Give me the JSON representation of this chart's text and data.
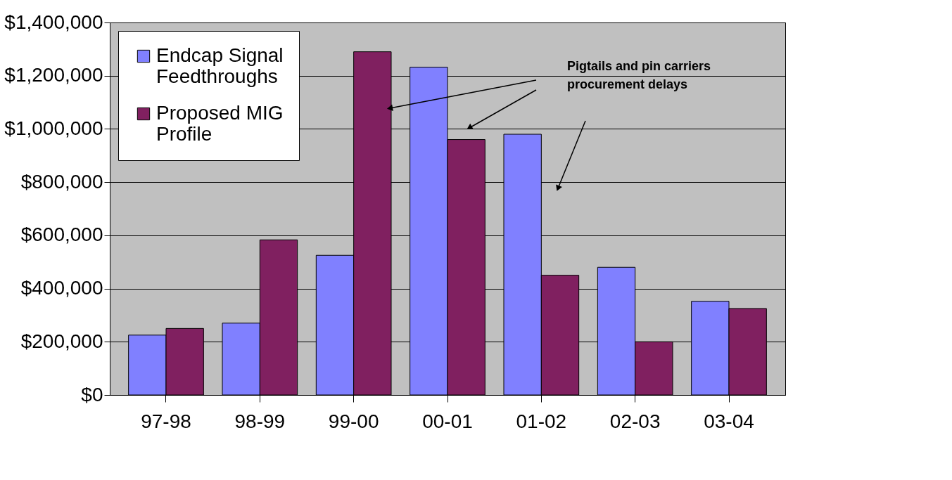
{
  "chart_data": {
    "type": "bar",
    "categories": [
      "97-98",
      "98-99",
      "99-00",
      "00-01",
      "01-02",
      "02-03",
      "03-04"
    ],
    "series": [
      {
        "name": "Endcap Signal Feedthroughs",
        "color": "#8080ff",
        "values": [
          225000,
          270000,
          525000,
          1232000,
          980000,
          480000,
          352000
        ]
      },
      {
        "name": "Proposed MIG Profile",
        "color": "#802060",
        "values": [
          250000,
          583000,
          1290000,
          960000,
          450000,
          200000,
          325000
        ]
      }
    ],
    "ylim": [
      0,
      1400000
    ],
    "yticks": [
      {
        "value": 0,
        "label": "$0"
      },
      {
        "value": 200000,
        "label": "$200,000"
      },
      {
        "value": 400000,
        "label": "$400,000"
      },
      {
        "value": 600000,
        "label": "$600,000"
      },
      {
        "value": 800000,
        "label": "$800,000"
      },
      {
        "value": 1000000,
        "label": "$1,000,000"
      },
      {
        "value": 1200000,
        "label": "$1,200,000"
      },
      {
        "value": 1400000,
        "label": "$1,400,000"
      }
    ],
    "grid": "y",
    "legend": "top left",
    "annotations": [
      "Pigtails and pin carriers\nprocurement delays"
    ]
  }
}
